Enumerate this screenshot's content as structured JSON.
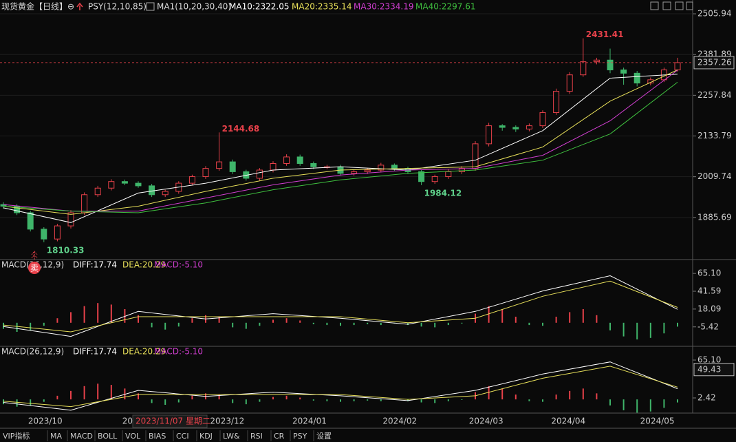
{
  "title": "现货黄金【日线】",
  "indicators": [
    "PSY(12,10,85)",
    "MA1(10,20,30,40)"
  ],
  "cursor_label": "2023/11/07 星期二",
  "signal": "卖",
  "tabs": [
    "VIP指标",
    "MA",
    "MACD",
    "BOLL",
    "VOL",
    "BIAS",
    "CCI",
    "KDJ",
    "LW&",
    "RSI",
    "CR",
    "PSY",
    "设置"
  ],
  "chart_data": [
    {
      "type": "candlestick",
      "xlim": [
        -0.255,
        51.02
      ],
      "ylim": [
        1761.64,
        2537.48
      ],
      "grid": true,
      "up_color": "#e8414a",
      "down_color": "#3fb56a",
      "yticks": [
        2505.94,
        2381.89,
        2257.84,
        2133.79,
        2009.74,
        1885.69
      ],
      "open": [
        1925,
        1920,
        1900,
        1850,
        1820,
        1860,
        1900,
        1955,
        1975,
        1995,
        1990,
        1982,
        1955,
        1965,
        1990,
        2010,
        2035,
        2055,
        2025,
        2005,
        2030,
        2050,
        2070,
        2050,
        2040,
        2040,
        2020,
        2025,
        2030,
        2045,
        2035,
        2025,
        1995,
        2010,
        2025,
        2035,
        2110,
        2165,
        2160,
        2155,
        2165,
        2205,
        2270,
        2320,
        2360,
        2365,
        2335,
        2325,
        2295,
        2305,
        2335
      ],
      "high": [
        1932,
        1926,
        1906,
        1856,
        1866,
        1908,
        1962,
        1982,
        2002,
        2001,
        1996,
        1988,
        1970,
        1996,
        2016,
        2042,
        2144.68,
        2062,
        2031,
        2036,
        2057,
        2078,
        2077,
        2056,
        2046,
        2046,
        2030,
        2036,
        2052,
        2050,
        2040,
        2030,
        2016,
        2032,
        2042,
        2118,
        2174,
        2170,
        2166,
        2172,
        2212,
        2278,
        2328,
        2431.41,
        2372,
        2400,
        2342,
        2332,
        2312,
        2342,
        2372
      ],
      "low": [
        1912,
        1893,
        1843,
        1810.33,
        1813,
        1852,
        1893,
        1948,
        1968,
        1984,
        1976,
        1948,
        1948,
        1958,
        1983,
        2003,
        2028,
        2018,
        1998,
        1998,
        2023,
        2043,
        2043,
        2033,
        2033,
        2013,
        2013,
        2018,
        2023,
        2028,
        2018,
        1984.12,
        1988,
        2003,
        2018,
        2028,
        2102,
        2150,
        2146,
        2148,
        2158,
        2198,
        2262,
        2314,
        2352,
        2325,
        2290,
        2285,
        2288,
        2298,
        2330
      ],
      "close": [
        1920,
        1900,
        1850,
        1820,
        1860,
        1900,
        1955,
        1975,
        1995,
        1990,
        1982,
        1955,
        1965,
        1990,
        2010,
        2035,
        2055,
        2025,
        2005,
        2030,
        2050,
        2070,
        2050,
        2040,
        2040,
        2020,
        2025,
        2030,
        2045,
        2035,
        2025,
        1995,
        2010,
        2025,
        2035,
        2110,
        2165,
        2160,
        2155,
        2165,
        2205,
        2270,
        2320,
        2360,
        2365,
        2335,
        2325,
        2295,
        2305,
        2335,
        2357.26
      ],
      "series": [
        {
          "name": "MA10:2322.05",
          "color": "#ffffff",
          "x": [
            0,
            5,
            10,
            15,
            20,
            25,
            30,
            35,
            40,
            45,
            50
          ],
          "values": [
            1915,
            1870,
            1960,
            1990,
            2030,
            2040,
            2030,
            2060,
            2150,
            2310,
            2322.05
          ]
        },
        {
          "name": "MA20:2335.14",
          "color": "#e8e05a",
          "x": [
            0,
            5,
            10,
            15,
            20,
            25,
            30,
            35,
            40,
            45,
            50
          ],
          "values": [
            1920,
            1895,
            1920,
            1965,
            2005,
            2030,
            2035,
            2040,
            2100,
            2240,
            2335.14
          ]
        },
        {
          "name": "MA30:2334.19",
          "color": "#d23fd2",
          "x": [
            0,
            5,
            10,
            15,
            20,
            25,
            30,
            35,
            40,
            45,
            50
          ],
          "values": [
            1925,
            1905,
            1905,
            1945,
            1985,
            2015,
            2030,
            2035,
            2075,
            2180,
            2334.19
          ]
        },
        {
          "name": "MA40:2297.61",
          "color": "#3fc03f",
          "x": [
            0,
            5,
            10,
            15,
            20,
            25,
            30,
            35,
            40,
            45,
            50
          ],
          "values": [
            1920,
            1905,
            1900,
            1930,
            1970,
            2000,
            2020,
            2030,
            2060,
            2140,
            2297.61
          ]
        }
      ]
    },
    {
      "type": "macd",
      "indicator": "MACD(26,12,9)",
      "xlim": [
        -0.255,
        51.02
      ],
      "ylim": [
        -32.87,
        80.66
      ],
      "yticks": [
        {
          "value": 65.1,
          "label": "65.10"
        },
        41.59,
        18.09,
        -5.42
      ],
      "series": [
        {
          "name": "DIFF:17.74",
          "color": "#ffffff",
          "x": [
            0,
            5,
            10,
            15,
            20,
            25,
            30,
            35,
            40,
            45,
            50
          ],
          "values": [
            -5,
            -18,
            15,
            5,
            12,
            6,
            -2,
            15,
            42,
            62,
            17.74
          ]
        },
        {
          "name": "DEA:20.29",
          "color": "#e8e05a",
          "x": [
            0,
            5,
            10,
            15,
            20,
            25,
            30,
            35,
            40,
            45,
            50
          ],
          "values": [
            -3,
            -12,
            8,
            8,
            8,
            8,
            0,
            6,
            35,
            55,
            20.29
          ]
        }
      ],
      "histogram": {
        "name": "MACD:-5.10",
        "name_color": "#d23fd2",
        "up_color": "#e8414a",
        "down_color": "#3fb56a",
        "values": [
          -8,
          -12,
          -10,
          -4,
          6,
          14,
          22,
          26,
          24,
          18,
          10,
          -6,
          -9,
          -5,
          6,
          10,
          8,
          -6,
          -8,
          -4,
          4,
          6,
          3,
          -2,
          -3,
          -4,
          -3,
          -2,
          -3,
          -1,
          -3,
          -5,
          -6,
          -3,
          -1,
          12,
          22,
          18,
          8,
          -3,
          -4,
          8,
          14,
          18,
          10,
          -10,
          -18,
          -22,
          -20,
          -14,
          -5.1
        ]
      }
    },
    {
      "type": "macd",
      "indicator": "MACD(26,12,9)",
      "xlim": [
        -0.255,
        51.02
      ],
      "ylim": [
        -20.38,
        82.2
      ],
      "yticks": [
        {
          "value": 65.1,
          "label": "65.10"
        },
        2.42
      ],
      "marker": 49.43,
      "xticks": [
        {
          "value": 3.1,
          "label": "2023/10"
        },
        {
          "value": 9.4,
          "label": "202"
        },
        {
          "value": 16.6,
          "label": "2023/12"
        },
        {
          "value": 22.7,
          "label": "2024/01"
        },
        {
          "value": 29.4,
          "label": "2024/02"
        },
        {
          "value": 35.8,
          "label": "2024/03"
        },
        {
          "value": 41.9,
          "label": "2024/04"
        },
        {
          "value": 48.5,
          "label": "2024/05"
        }
      ],
      "series": [
        {
          "name": "DIFF:17.74",
          "color": "#ffffff",
          "x": [
            0,
            5,
            10,
            15,
            20,
            25,
            30,
            35,
            40,
            45,
            50
          ],
          "values": [
            -5,
            -18,
            15,
            5,
            12,
            6,
            -2,
            15,
            42,
            62,
            17.74
          ]
        },
        {
          "name": "DEA:20.29",
          "color": "#e8e05a",
          "x": [
            0,
            5,
            10,
            15,
            20,
            25,
            30,
            35,
            40,
            45,
            50
          ],
          "values": [
            -3,
            -12,
            8,
            8,
            8,
            8,
            0,
            6,
            35,
            55,
            20.29
          ]
        }
      ],
      "histogram": {
        "name": "MACD:-5.10",
        "name_color": "#d23fd2",
        "up_color": "#e8414a",
        "down_color": "#3fb56a",
        "values": [
          -8,
          -12,
          -10,
          -4,
          6,
          14,
          22,
          26,
          24,
          18,
          10,
          -6,
          -9,
          -5,
          6,
          10,
          8,
          -6,
          -8,
          -4,
          4,
          6,
          3,
          -2,
          -3,
          -4,
          -3,
          -2,
          -3,
          -1,
          -3,
          -5,
          -6,
          -3,
          -1,
          12,
          22,
          18,
          8,
          -3,
          -4,
          8,
          14,
          18,
          10,
          -10,
          -18,
          -22,
          -20,
          -14,
          -5.1
        ]
      }
    }
  ]
}
